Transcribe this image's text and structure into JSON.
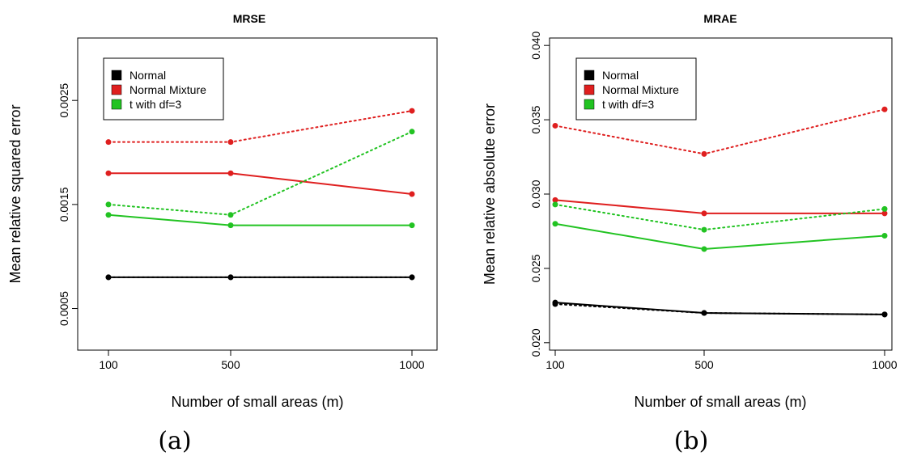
{
  "charts": [
    {
      "caption": "(a)",
      "chart_data": {
        "type": "line",
        "title": "MRSE",
        "xlabel": "Number of small areas (m)",
        "ylabel": "Mean relative squared error",
        "categories": [
          "100",
          "500",
          "1000"
        ],
        "x_positions": [
          100,
          500,
          1000
        ],
        "xlim": [
          100,
          1000
        ],
        "ylim": [
          0.0001,
          0.0031
        ],
        "yticks": [
          0.0005,
          0.0015,
          0.0025
        ],
        "ytick_labels": [
          "0.0005",
          "0.0015",
          "0.0025"
        ],
        "grid": false,
        "legend_position": "top-left",
        "legend": [
          {
            "label": "Normal",
            "color": "#000000"
          },
          {
            "label": "Normal Mixture",
            "color": "#DF1F1F"
          },
          {
            "label": "t with df=3",
            "color": "#22C322"
          }
        ],
        "series": [
          {
            "color": "#000000",
            "style": "solid",
            "values": [
              0.0008,
              0.0008,
              0.0008
            ]
          },
          {
            "color": "#000000",
            "style": "dotted",
            "values": [
              0.0008,
              0.0008,
              0.0008
            ]
          },
          {
            "color": "#DF1F1F",
            "style": "solid",
            "values": [
              0.0018,
              0.0018,
              0.0016
            ]
          },
          {
            "color": "#DF1F1F",
            "style": "dotted",
            "values": [
              0.0021,
              0.0021,
              0.0024
            ]
          },
          {
            "color": "#22C322",
            "style": "solid",
            "values": [
              0.0014,
              0.0013,
              0.0013
            ]
          },
          {
            "color": "#22C322",
            "style": "dotted",
            "values": [
              0.0015,
              0.0014,
              0.0022
            ]
          }
        ]
      }
    },
    {
      "caption": "(b)",
      "chart_data": {
        "type": "line",
        "title": "MRAE",
        "xlabel": "Number of small areas (m)",
        "ylabel": "Mean relative absolute error",
        "categories": [
          "100",
          "500",
          "1000"
        ],
        "x_positions": [
          100,
          500,
          1000
        ],
        "xlim": [
          100,
          1000
        ],
        "ylim": [
          0.0195,
          0.0405
        ],
        "yticks": [
          0.02,
          0.025,
          0.03,
          0.035,
          0.04
        ],
        "ytick_labels": [
          "0.020",
          "0.025",
          "0.030",
          "0.035",
          "0.040"
        ],
        "grid": false,
        "legend_position": "top-left",
        "legend": [
          {
            "label": "Normal",
            "color": "#000000"
          },
          {
            "label": "Normal Mixture",
            "color": "#DF1F1F"
          },
          {
            "label": "t with df=3",
            "color": "#22C322"
          }
        ],
        "series": [
          {
            "color": "#000000",
            "style": "solid",
            "values": [
              0.0227,
              0.022,
              0.0219
            ]
          },
          {
            "color": "#000000",
            "style": "dotted",
            "values": [
              0.0226,
              0.022,
              0.0219
            ]
          },
          {
            "color": "#DF1F1F",
            "style": "solid",
            "values": [
              0.0296,
              0.0287,
              0.0287
            ]
          },
          {
            "color": "#DF1F1F",
            "style": "dotted",
            "values": [
              0.0346,
              0.0327,
              0.0357
            ]
          },
          {
            "color": "#22C322",
            "style": "solid",
            "values": [
              0.028,
              0.0263,
              0.0272
            ]
          },
          {
            "color": "#22C322",
            "style": "dotted",
            "values": [
              0.0293,
              0.0276,
              0.029
            ]
          }
        ]
      }
    }
  ]
}
